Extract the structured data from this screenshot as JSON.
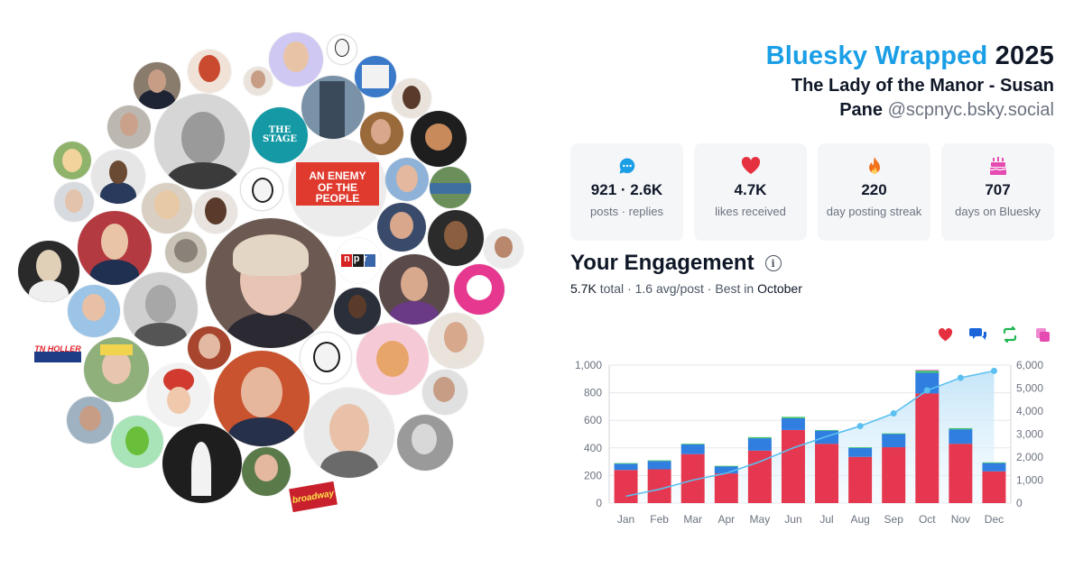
{
  "title": {
    "part1": "Bluesky Wrapped",
    "part2": "2025"
  },
  "profile": {
    "name_line1": "The Lady of the Manor - Susan",
    "name_line2": "Pane",
    "handle": "@scpnyc.bsky.social"
  },
  "stats": [
    {
      "icon": "speech-bubble-icon",
      "value": "921 · 2.6K",
      "caption": "posts · replies",
      "color": "#1a9ee6"
    },
    {
      "icon": "heart-icon",
      "value": "4.7K",
      "caption": "likes received",
      "color": "#e5303f"
    },
    {
      "icon": "flame-icon",
      "value": "220",
      "caption": "day posting streak",
      "color": "#f2711c"
    },
    {
      "icon": "cake-icon",
      "value": "707",
      "caption": "days on Bluesky",
      "color": "#e64bb2"
    }
  ],
  "engagement": {
    "title": "Your Engagement",
    "total": "5.7K",
    "total_label": "total",
    "avg": "1.6 avg/post",
    "best_label": "Best in",
    "best_month": "October"
  },
  "legend_icons": [
    {
      "icon": "heart-icon",
      "color": "#e5303f"
    },
    {
      "icon": "reply-icon",
      "color": "#1a63d8"
    },
    {
      "icon": "repost-icon",
      "color": "#1fb64f"
    },
    {
      "icon": "quote-icon",
      "color": "#e64bb2"
    }
  ],
  "colors": {
    "likes": "#e5374f",
    "replies": "#2f7ee0",
    "reposts": "#3ec466",
    "quotes": "#e64bb2",
    "cumulative": "#5bc0f0"
  },
  "chart_data": {
    "type": "bar",
    "categories": [
      "Jan",
      "Feb",
      "Mar",
      "Apr",
      "May",
      "Jun",
      "Jul",
      "Aug",
      "Sep",
      "Oct",
      "Nov",
      "Dec"
    ],
    "series": [
      {
        "values": [
          240,
          245,
          355,
          215,
          380,
          530,
          430,
          335,
          405,
          795,
          430,
          230
        ]
      },
      {
        "values": [
          45,
          60,
          70,
          50,
          90,
          85,
          95,
          65,
          95,
          150,
          105,
          60
        ]
      },
      {
        "values": [
          5,
          5,
          5,
          5,
          8,
          10,
          5,
          5,
          5,
          15,
          8,
          5
        ]
      },
      {
        "values": [
          0,
          0,
          0,
          0,
          0,
          0,
          0,
          0,
          0,
          5,
          0,
          0
        ]
      },
      {
        "values": [
          300,
          600,
          1000,
          1300,
          1800,
          2400,
          2900,
          3350,
          3900,
          4900,
          5450,
          5750
        ]
      }
    ],
    "y_left": {
      "range": [
        0,
        1000
      ],
      "ticks": [
        "0",
        "200",
        "400",
        "600",
        "800",
        "1,000"
      ]
    },
    "y_right": {
      "range": [
        0,
        6000
      ],
      "ticks": [
        "0",
        "1,000",
        "2,000",
        "3,000",
        "4,000",
        "5,000",
        "6,000"
      ]
    },
    "grid": true,
    "stacked": true,
    "secondary_type": "area"
  },
  "avatars": [
    {
      "name": "avatar-main",
      "bg": "#7a6a63",
      "skin": "#e9c3b1",
      "hair": "#e2d3c0"
    },
    {
      "name": "avatar-bearded-man",
      "bg": "#cfcfcf",
      "skin": "#9e9e9e",
      "hair": "#5c5c5c"
    },
    {
      "name": "avatar-the-stage",
      "bg": "#159aa5",
      "label": "THE STAGE",
      "fg": "#ffffff"
    },
    {
      "name": "avatar-enemy-of-the-people",
      "bg": "#ececec",
      "label": "AN ENEMY OF THE PEOPLE",
      "fg": "#ffffff"
    },
    {
      "name": "avatar-npr",
      "bg": "#ffffff",
      "label": "npr",
      "fg": "#ffffff"
    },
    {
      "name": "badge-tn-holler",
      "label": "TN HOLLER",
      "fg": "#e0212b"
    },
    {
      "name": "badge-broadway",
      "label": "broadway",
      "fg": "#ffe24a"
    }
  ]
}
